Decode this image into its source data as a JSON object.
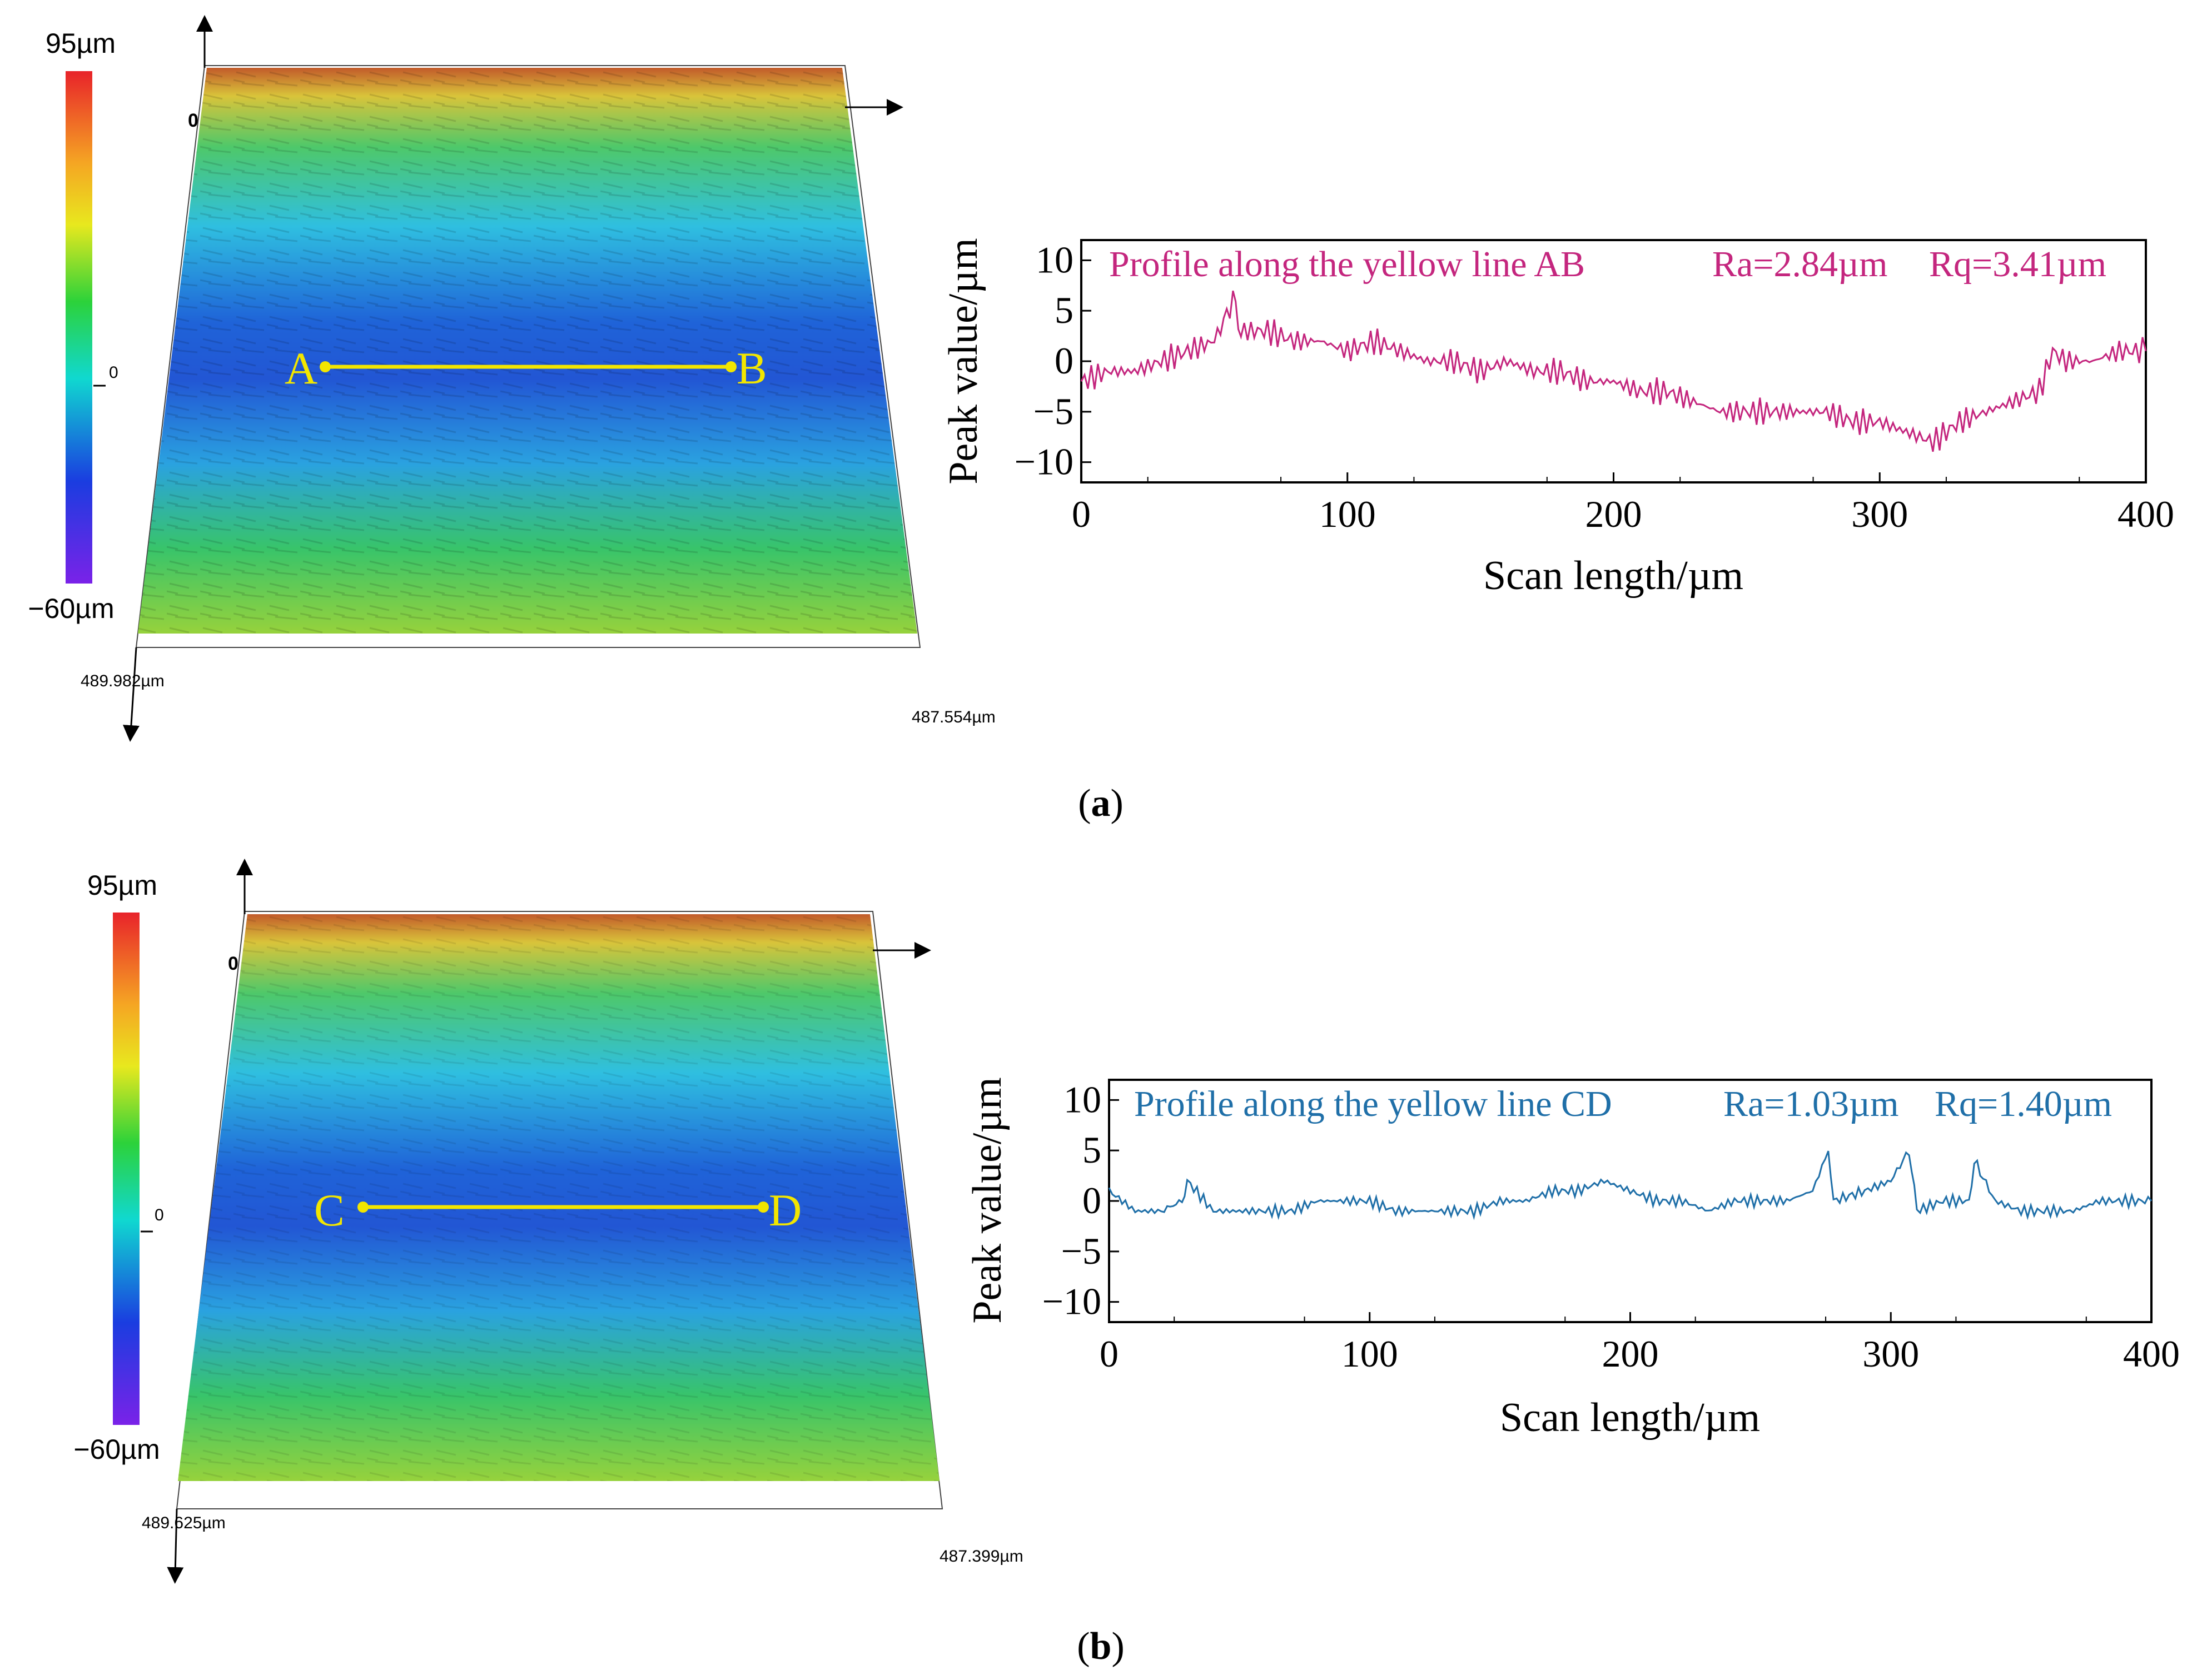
{
  "colors": {
    "panel_a_line": "#c4267e",
    "panel_b_line": "#1f6fa8",
    "marker_yellow": "#f2e600",
    "axis": "#000000"
  },
  "panels": [
    {
      "caption": "(a)",
      "caption_letter": "a",
      "colorbar": {
        "max_label": "95µm",
        "min_label": "−60µm",
        "mid_label": "0"
      },
      "surface": {
        "origin_label": "0",
        "dim_x_label": "489.982µm",
        "dim_y_label": "487.554µm",
        "point_start": "A",
        "point_end": "B"
      }
    },
    {
      "caption": "(b)",
      "caption_letter": "b",
      "colorbar": {
        "max_label": "95µm",
        "min_label": "−60µm",
        "mid_label": "0"
      },
      "surface": {
        "origin_label": "0",
        "dim_x_label": "489.625µm",
        "dim_y_label": "487.399µm",
        "point_start": "C",
        "point_end": "D"
      }
    }
  ],
  "chart_data": [
    {
      "type": "line",
      "title": "Profile along the yellow line AB",
      "ra_label": "Ra=2.84µm",
      "rq_label": "Rq=3.41µm",
      "xlabel": "Scan length/µm",
      "ylabel": "Peak value/µm",
      "xlim": [
        0,
        400
      ],
      "ylim": [
        -12,
        12
      ],
      "xticks": [
        0,
        100,
        200,
        300,
        400
      ],
      "yticks": [
        10,
        5,
        0,
        -5,
        -10
      ],
      "series": [
        {
          "name": "Profile AB",
          "x": [
            0,
            10,
            20,
            30,
            40,
            50,
            57,
            60,
            70,
            80,
            90,
            100,
            110,
            120,
            130,
            140,
            150,
            160,
            170,
            180,
            190,
            200,
            210,
            220,
            230,
            240,
            250,
            260,
            270,
            280,
            290,
            300,
            310,
            320,
            330,
            340,
            350,
            360,
            365,
            370,
            380,
            390,
            400
          ],
          "y": [
            -2,
            -1,
            -1,
            0,
            1,
            2,
            6,
            3,
            3,
            2,
            2,
            1,
            2,
            1,
            0,
            0,
            -1,
            0,
            -1,
            -1,
            -2,
            -2,
            -3,
            -3,
            -4,
            -5,
            -5,
            -5,
            -5,
            -5,
            -6,
            -6,
            -7,
            -8,
            -6,
            -5,
            -4,
            -3,
            1,
            0,
            0,
            1,
            1
          ]
        }
      ]
    },
    {
      "type": "line",
      "title": "Profile along the yellow line CD",
      "ra_label": "Ra=1.03µm",
      "rq_label": "Rq=1.40µm",
      "xlabel": "Scan length/µm",
      "ylabel": "Peak value/µm",
      "xlim": [
        0,
        400
      ],
      "ylim": [
        -12,
        12
      ],
      "xticks": [
        0,
        100,
        200,
        300,
        400
      ],
      "yticks": [
        10,
        5,
        0,
        -5,
        -10
      ],
      "series": [
        {
          "name": "Profile CD",
          "x": [
            0,
            10,
            20,
            28,
            30,
            40,
            50,
            60,
            70,
            80,
            90,
            100,
            110,
            120,
            130,
            140,
            150,
            160,
            170,
            180,
            190,
            200,
            210,
            220,
            230,
            240,
            250,
            260,
            270,
            276,
            278,
            290,
            300,
            307,
            310,
            320,
            330,
            332,
            340,
            350,
            360,
            370,
            380,
            390,
            400
          ],
          "y": [
            1,
            -1,
            -1,
            0,
            2,
            -1,
            -1,
            -1,
            -1,
            0,
            0,
            0,
            -1,
            -1,
            -1,
            -1,
            0,
            0,
            1,
            1,
            2,
            1,
            0,
            0,
            -1,
            0,
            0,
            0,
            1,
            5,
            0,
            1,
            2,
            5,
            -1,
            0,
            0,
            4,
            0,
            -1,
            -1,
            -1,
            0,
            0,
            0
          ]
        }
      ]
    }
  ]
}
